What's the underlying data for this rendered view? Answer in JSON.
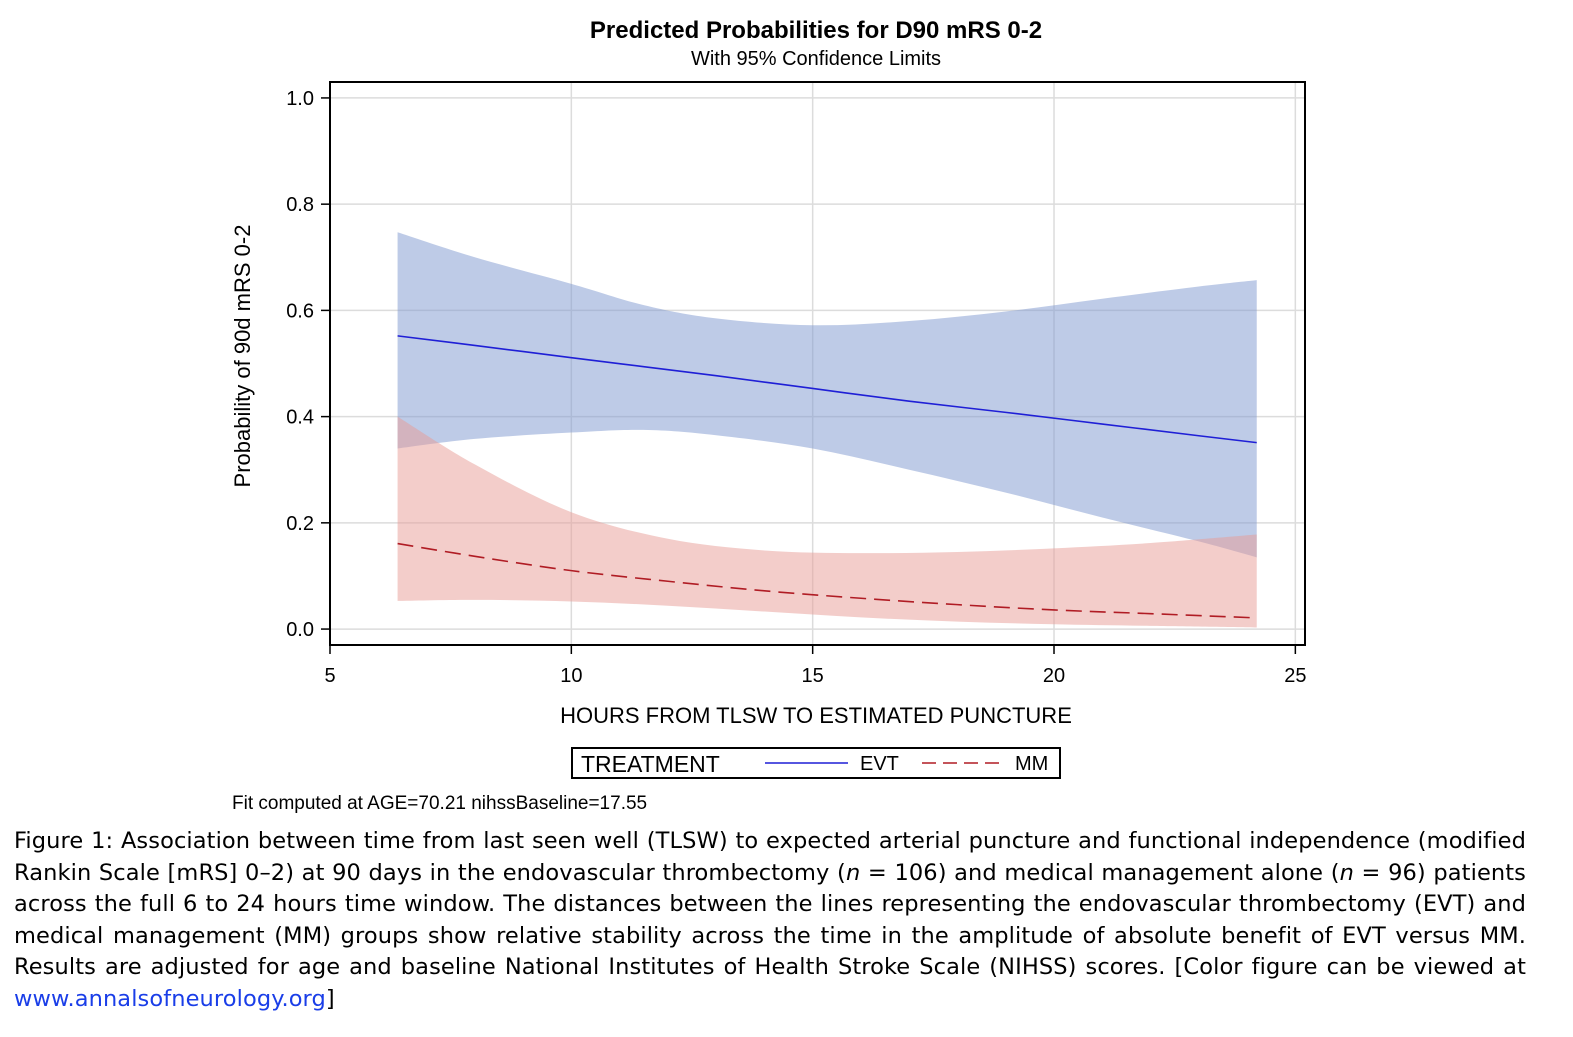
{
  "chart_data": {
    "type": "line",
    "title": "Predicted Probabilities for D90 mRS 0-2",
    "subtitle": "With 95% Confidence Limits",
    "xlabel": "HOURS FROM TLSW TO ESTIMATED PUNCTURE",
    "ylabel": "Probability of 90d mRS 0-2",
    "xlim": [
      5,
      25.2
    ],
    "ylim": [
      -0.03,
      1.03
    ],
    "xticks": [
      5,
      10,
      15,
      20,
      25
    ],
    "xtick_labels": [
      "5",
      "10",
      "15",
      "20",
      "25"
    ],
    "yticks": [
      0.0,
      0.2,
      0.4,
      0.6,
      0.8,
      1.0
    ],
    "ytick_labels": [
      "0.0",
      "0.2",
      "0.4",
      "0.6",
      "0.8",
      "1.0"
    ],
    "grid": true,
    "legend": {
      "title": "TREATMENT",
      "position": "bottom"
    },
    "footnote": "Fit computed at AGE=70.21 nihssBaseline=17.55",
    "series": [
      {
        "name": "EVT",
        "color": "#1f1fd6",
        "band_color": "#7e97cf",
        "line_style": "solid",
        "x": [
          6.4,
          8,
          10,
          11.5,
          13,
          15,
          17,
          19,
          21,
          23,
          24.2
        ],
        "y": [
          0.552,
          0.534,
          0.511,
          0.494,
          0.477,
          0.453,
          0.429,
          0.408,
          0.386,
          0.364,
          0.351
        ],
        "lower": [
          0.34,
          0.358,
          0.37,
          0.375,
          0.365,
          0.34,
          0.3,
          0.257,
          0.21,
          0.165,
          0.135
        ],
        "upper": [
          0.747,
          0.7,
          0.65,
          0.61,
          0.585,
          0.572,
          0.58,
          0.598,
          0.622,
          0.645,
          0.657
        ]
      },
      {
        "name": "MM",
        "color": "#b01c24",
        "band_color": "#e79c96",
        "line_style": "dashed",
        "x": [
          6.4,
          8,
          10,
          12,
          14,
          16,
          18,
          20,
          22,
          24.2
        ],
        "y": [
          0.161,
          0.137,
          0.11,
          0.09,
          0.072,
          0.058,
          0.046,
          0.036,
          0.029,
          0.021
        ],
        "lower": [
          0.053,
          0.055,
          0.052,
          0.044,
          0.033,
          0.022,
          0.014,
          0.009,
          0.006,
          0.003
        ],
        "upper": [
          0.4,
          0.31,
          0.22,
          0.17,
          0.148,
          0.143,
          0.145,
          0.152,
          0.162,
          0.178
        ]
      }
    ]
  },
  "caption": {
    "prefix": "Figure 1: Association between time from last seen well (TLSW) to expected arterial puncture and functional independence (modified Rankin Scale [mRS] 0–2) at 90 days in the endovascular thrombectomy (",
    "n_var_1": "n",
    "eq_1": " = 106) and medical management alone (",
    "n_var_2": "n",
    "eq_2": " = 96) patients across the full 6 to 24 hours time window. The distances between the lines representing the endovascular thrombectomy (EVT) and medical management (MM) groups show relative stability across the time in the amplitude of absolute benefit of EVT versus MM. Results are adjusted for age and baseline National Institutes of Health Stroke Scale (NIHSS) scores. [Color figure can be viewed at ",
    "link_text": "www.annalsofneurology.org",
    "suffix": "]"
  }
}
